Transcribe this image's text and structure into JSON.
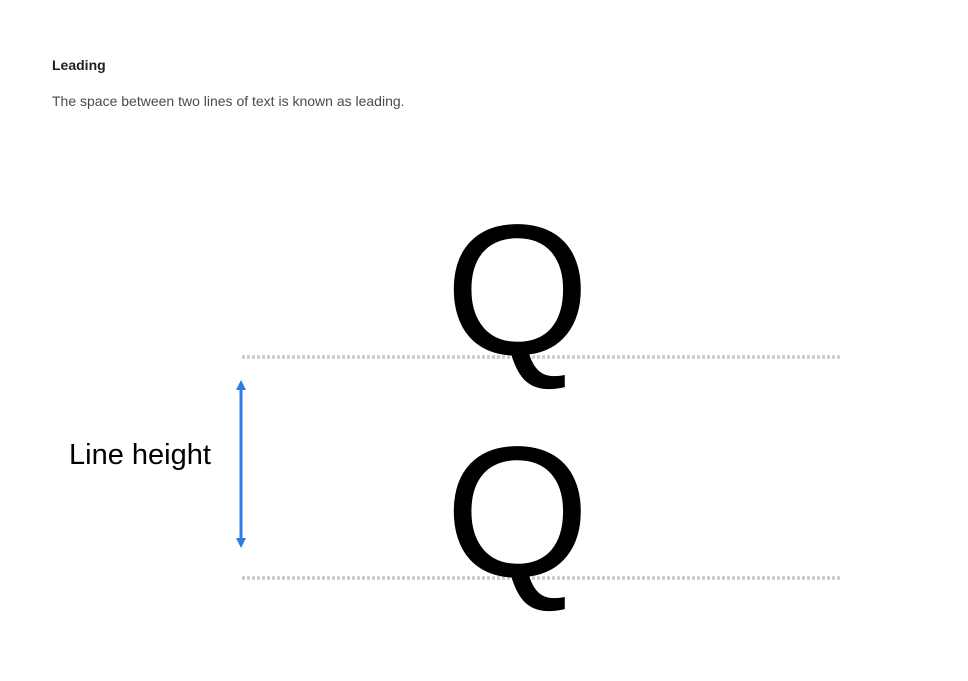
{
  "section": {
    "title": "Leading",
    "description": "The space between two lines of text is known as leading."
  },
  "diagram": {
    "glyph_top": "Q",
    "glyph_bottom": "Q",
    "measure_label": "Line height",
    "colors": {
      "arrow": "#2b7de9",
      "baseline": "#c9c9d6",
      "glyph": "#000000"
    }
  }
}
